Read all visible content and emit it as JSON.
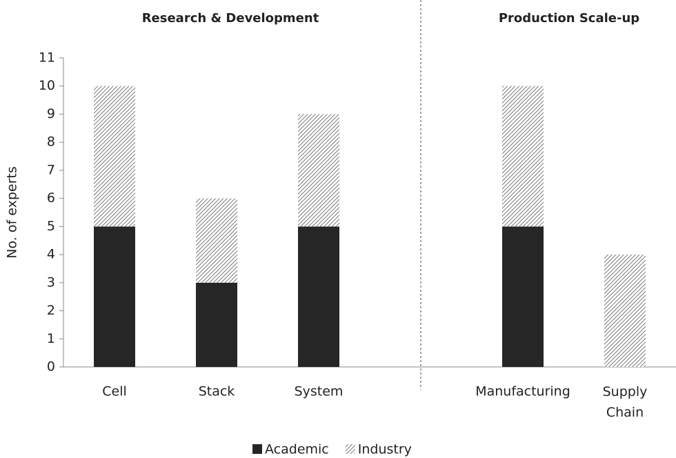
{
  "chart_data": {
    "type": "stacked_bar",
    "annotations": [
      "Research & Development",
      "Production Scale-up"
    ],
    "y_label": "No. of experts",
    "categories": [
      "Cell",
      "Stack",
      "System",
      null,
      "Manufacturing",
      "Supply Chain"
    ],
    "series": [
      {
        "name": "Academic",
        "color": "#262626",
        "values": [
          5,
          3,
          5,
          null,
          5,
          0
        ]
      },
      {
        "name": "Industry",
        "color": "#555555",
        "pattern": "hatch",
        "values": [
          5,
          3,
          4,
          null,
          5,
          4
        ]
      }
    ],
    "ylim": [
      0,
      11
    ],
    "yticks": [
      0,
      1,
      2,
      3,
      4,
      5,
      6,
      7,
      8,
      9,
      10,
      11
    ],
    "grid": false
  }
}
